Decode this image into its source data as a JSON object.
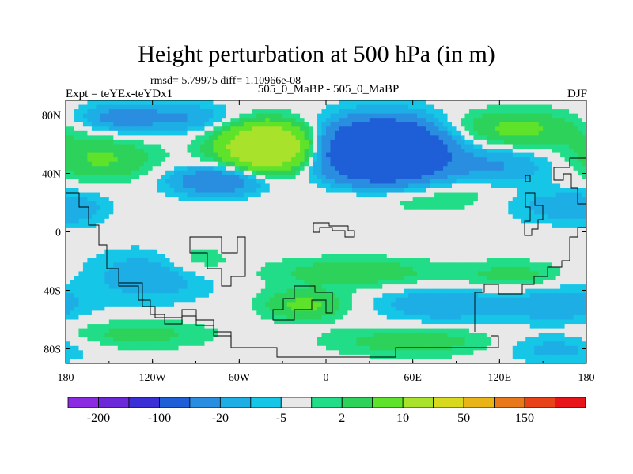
{
  "title": "Height perturbation at 500 hPa (in m)",
  "subtitle": "rmsd= 5.79975 diff= 1.10966e-08",
  "left_label": "Expt = teYEx-teYDx1",
  "center_label": "505_0_MaBP - 505_0_MaBP",
  "right_label": "DJF",
  "chart_data": {
    "type": "heatmap",
    "title": "Height perturbation at 500 hPa (in m)",
    "subtitle": "rmsd= 5.79975 diff= 1.10966e-08",
    "xlabel": "",
    "ylabel": "",
    "xlim": [
      -180,
      180
    ],
    "ylim": [
      -90,
      90
    ],
    "x_ticks": [
      {
        "value": -180,
        "label": "180"
      },
      {
        "value": -120,
        "label": "120W"
      },
      {
        "value": -60,
        "label": "60W"
      },
      {
        "value": 0,
        "label": "0"
      },
      {
        "value": 60,
        "label": "60E"
      },
      {
        "value": 120,
        "label": "120E"
      },
      {
        "value": 180,
        "label": "180"
      }
    ],
    "y_ticks": [
      {
        "value": 80,
        "label": "80N"
      },
      {
        "value": 40,
        "label": "40N"
      },
      {
        "value": 0,
        "label": "0"
      },
      {
        "value": -40,
        "label": "40S"
      },
      {
        "value": -80,
        "label": "80S"
      }
    ],
    "colorbar": {
      "colors": [
        "#8a2be2",
        "#6a28d8",
        "#3a2fd6",
        "#1e5ed6",
        "#2a8ee0",
        "#1eaee6",
        "#16c6e6",
        "#e8e8e8",
        "#22dd88",
        "#2cd25a",
        "#5ee22a",
        "#a8e22a",
        "#d8d81e",
        "#e8b418",
        "#e8781a",
        "#e84218",
        "#e8141a"
      ],
      "labels": [
        {
          "index": 1,
          "text": "-200"
        },
        {
          "index": 3,
          "text": "-100"
        },
        {
          "index": 5,
          "text": "-20"
        },
        {
          "index": 7,
          "text": "-5"
        },
        {
          "index": 9,
          "text": "2"
        },
        {
          "index": 11,
          "text": "10"
        },
        {
          "index": 13,
          "text": "50"
        },
        {
          "index": 15,
          "text": "150"
        }
      ]
    },
    "centers": [
      {
        "lon": -145,
        "lat": 78,
        "amp": -12,
        "slon": 20,
        "slat": 7
      },
      {
        "lon": -100,
        "lat": 78,
        "amp": -10,
        "slon": 25,
        "slat": 7
      },
      {
        "lon": -40,
        "lat": 58,
        "amp": 45,
        "slon": 22,
        "slat": 11
      },
      {
        "lon": -155,
        "lat": 50,
        "amp": 11,
        "slon": 25,
        "slat": 10
      },
      {
        "lon": -75,
        "lat": 35,
        "amp": -20,
        "slon": 22,
        "slat": 7
      },
      {
        "lon": 40,
        "lat": 55,
        "amp": -70,
        "slon": 28,
        "slat": 14
      },
      {
        "lon": 130,
        "lat": 70,
        "amp": 12,
        "slon": 35,
        "slat": 9
      },
      {
        "lon": 120,
        "lat": 45,
        "amp": -10,
        "slon": 25,
        "slat": 9
      },
      {
        "lon": 60,
        "lat": 25,
        "amp": 6,
        "slon": 45,
        "slat": 8
      },
      {
        "lon": 160,
        "lat": 18,
        "amp": -8,
        "slon": 25,
        "slat": 8
      },
      {
        "lon": -170,
        "lat": 15,
        "amp": -5,
        "slon": 14,
        "slat": 8
      },
      {
        "lon": -120,
        "lat": -30,
        "amp": -9,
        "slon": 30,
        "slat": 12
      },
      {
        "lon": -90,
        "lat": -20,
        "amp": 6,
        "slon": 18,
        "slat": 8
      },
      {
        "lon": 20,
        "lat": -28,
        "amp": 9,
        "slon": 40,
        "slat": 7
      },
      {
        "lon": -15,
        "lat": -50,
        "amp": 12,
        "slon": 20,
        "slat": 7
      },
      {
        "lon": 80,
        "lat": -50,
        "amp": -10,
        "slon": 30,
        "slat": 8
      },
      {
        "lon": 160,
        "lat": -50,
        "amp": -9,
        "slon": 25,
        "slat": 9
      },
      {
        "lon": 130,
        "lat": -30,
        "amp": 7,
        "slon": 25,
        "slat": 7
      },
      {
        "lon": -130,
        "lat": -70,
        "amp": 7,
        "slon": 35,
        "slat": 7
      },
      {
        "lon": 60,
        "lat": -75,
        "amp": 8,
        "slon": 40,
        "slat": 7
      },
      {
        "lon": 160,
        "lat": -80,
        "amp": -7,
        "slon": 25,
        "slat": 7
      }
    ]
  }
}
